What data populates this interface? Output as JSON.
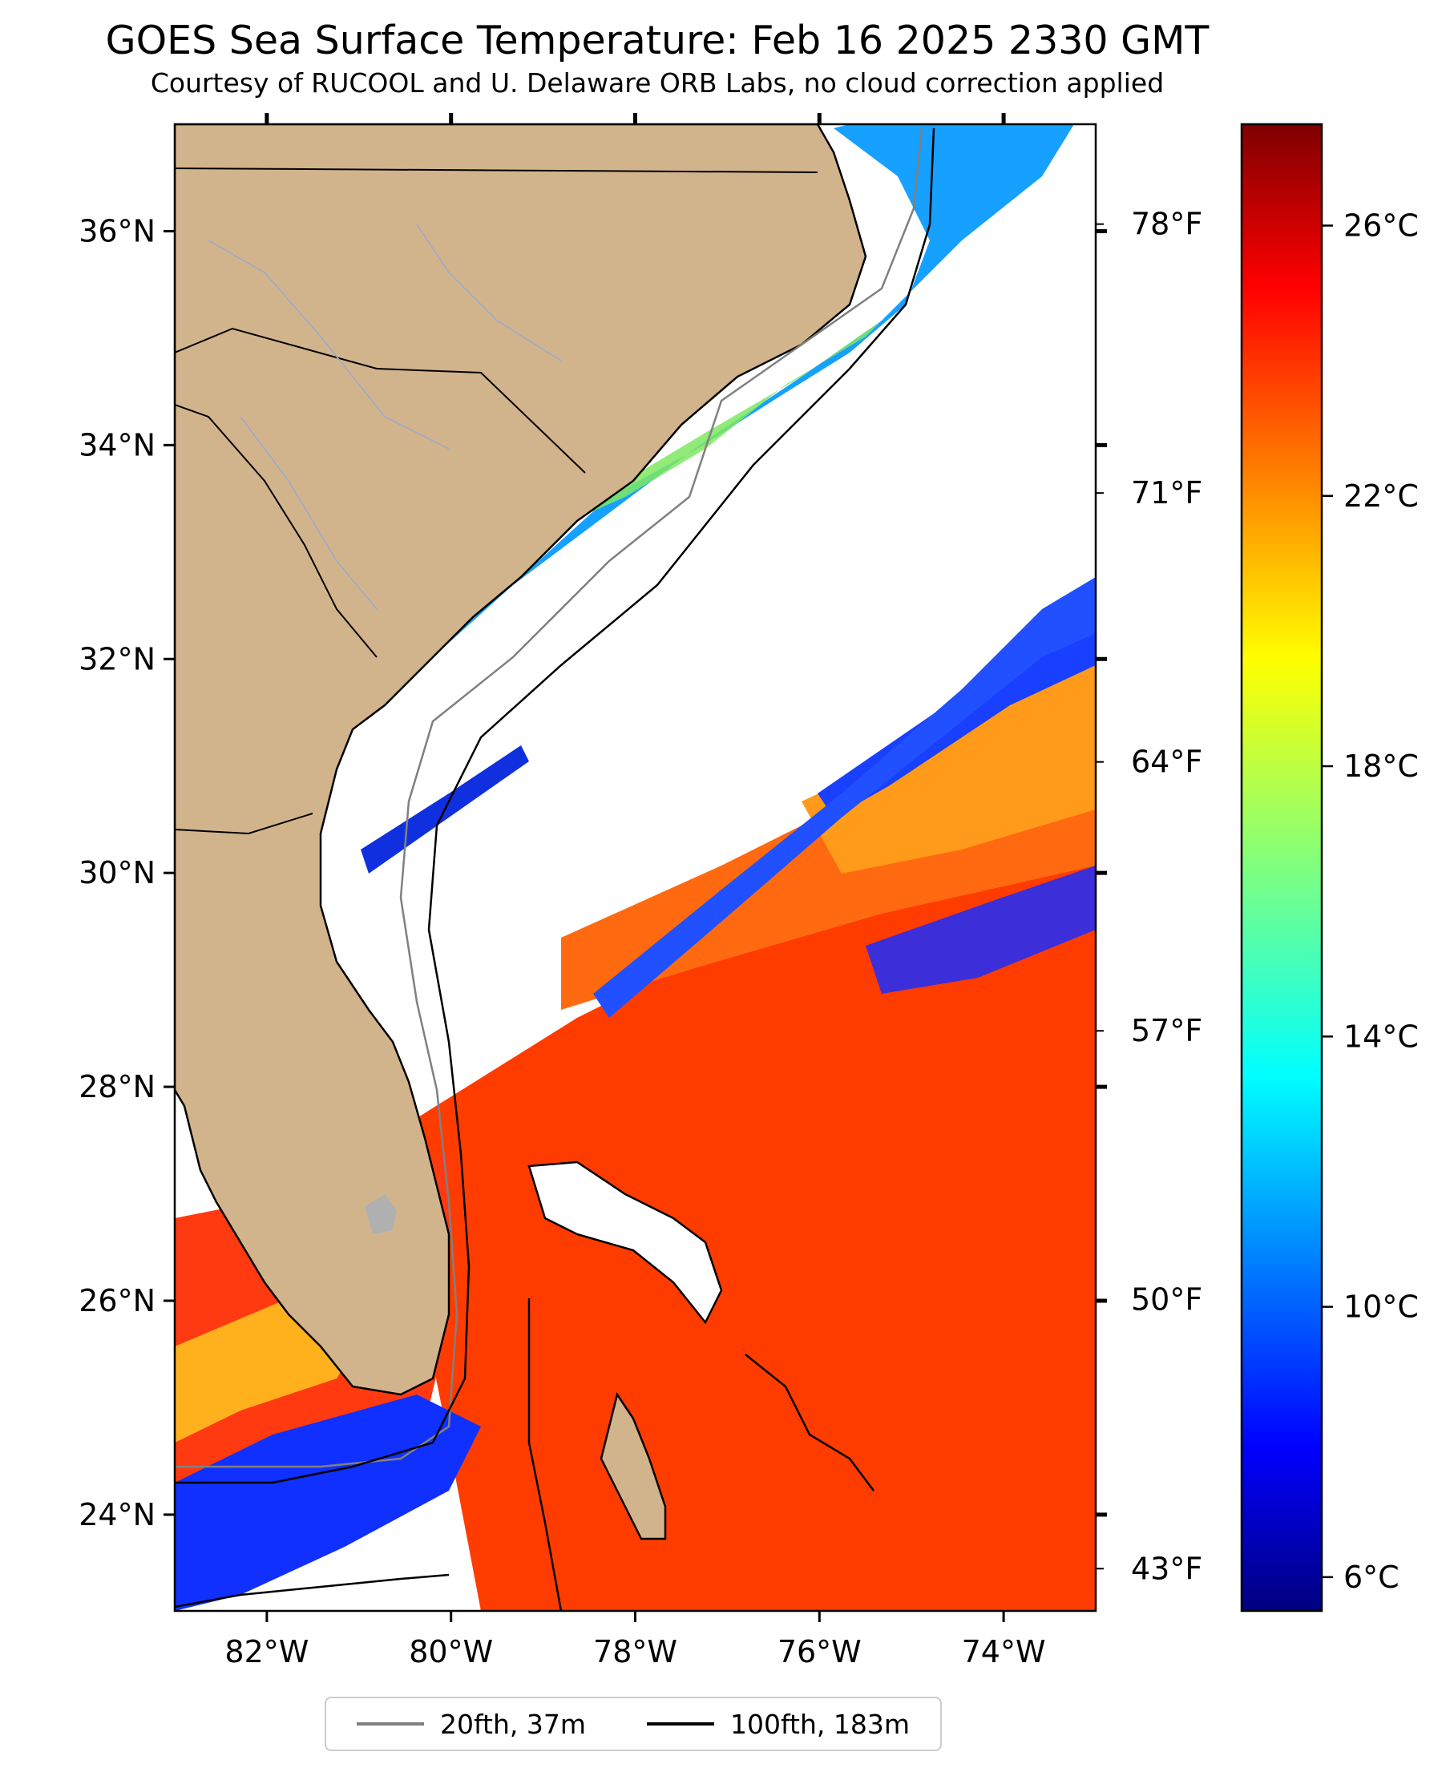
{
  "title": "GOES Sea Surface Temperature: Feb 16 2025 2330 GMT",
  "subtitle": "Courtesy of RUCOOL and U. Delaware ORB Labs, no cloud correction applied",
  "map": {
    "lon_range": [
      -83,
      -73
    ],
    "lat_range": [
      23.1,
      37
    ],
    "lat_ticks": [
      {
        "value": 36,
        "label": "36°N"
      },
      {
        "value": 34,
        "label": "34°N"
      },
      {
        "value": 32,
        "label": "32°N"
      },
      {
        "value": 30,
        "label": "30°N"
      },
      {
        "value": 28,
        "label": "28°N"
      },
      {
        "value": 26,
        "label": "26°N"
      },
      {
        "value": 24,
        "label": "24°N"
      }
    ],
    "lon_ticks": [
      {
        "value": -82,
        "label": "82°W"
      },
      {
        "value": -80,
        "label": "80°W"
      },
      {
        "value": -78,
        "label": "78°W"
      },
      {
        "value": -76,
        "label": "76°W"
      },
      {
        "value": -74,
        "label": "74°W"
      }
    ],
    "fahrenheit_ticks": [
      {
        "value": 78,
        "label": "78°F"
      },
      {
        "value": 71,
        "label": "71°F"
      },
      {
        "value": 64,
        "label": "64°F"
      },
      {
        "value": 57,
        "label": "57°F"
      },
      {
        "value": 50,
        "label": "50°F"
      },
      {
        "value": 43,
        "label": "43°F"
      }
    ],
    "land_color": "#d2b48c",
    "cloud_color": "#ffffff"
  },
  "colorbar": {
    "colormap": "jet",
    "range_c": [
      5.5,
      27.5
    ],
    "ticks": [
      {
        "value": 26,
        "label": "26°C"
      },
      {
        "value": 22,
        "label": "22°C"
      },
      {
        "value": 18,
        "label": "18°C"
      },
      {
        "value": 14,
        "label": "14°C"
      },
      {
        "value": 10,
        "label": "10°C"
      },
      {
        "value": 6,
        "label": "6°C"
      }
    ]
  },
  "legend": {
    "items": [
      {
        "label": "20fth, 37m",
        "color": "#808080"
      },
      {
        "label": "100fth, 183m",
        "color": "#000000"
      }
    ]
  }
}
